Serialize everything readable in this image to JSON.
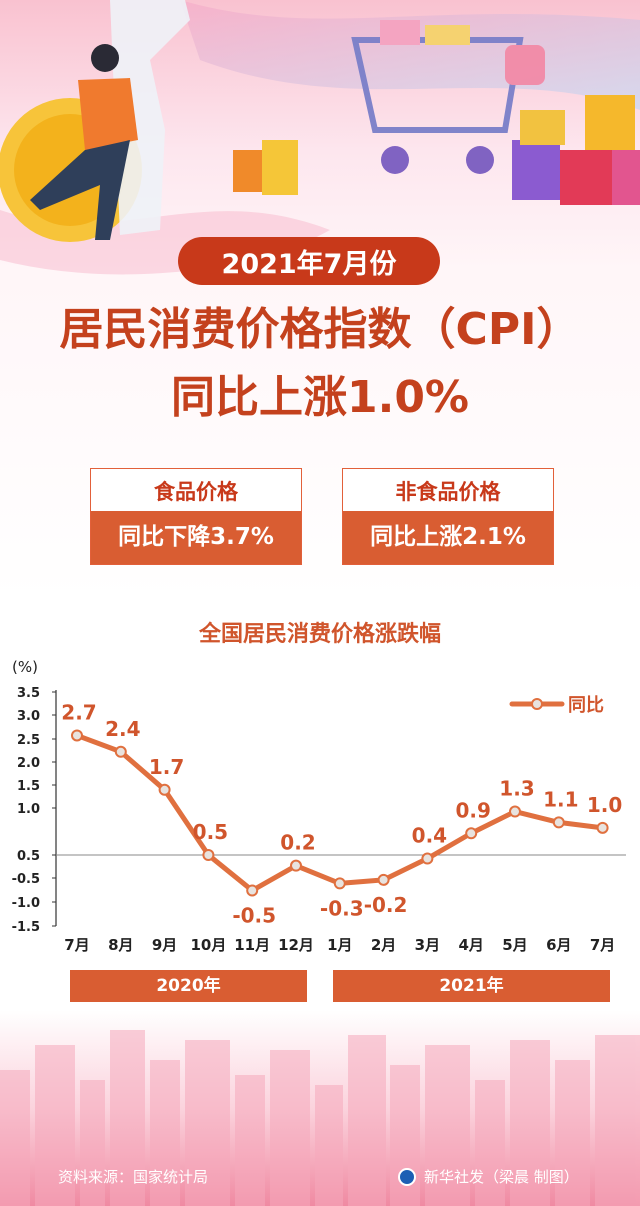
{
  "header": {
    "date_label": "2021年7月份",
    "title_line1": "居民消费价格指数（CPI）",
    "title_line2": "同比上涨1.0%"
  },
  "stats": [
    {
      "label": "食品价格",
      "value": "同比下降3.7%"
    },
    {
      "label": "非食品价格",
      "value": "同比上涨2.1%"
    }
  ],
  "colors": {
    "accent": "#d95d32",
    "title": "#c4411d",
    "line": "#e0703f",
    "point": "#e8e3df"
  },
  "chart_data": {
    "type": "line",
    "title": "全国居民消费价格涨跌幅",
    "ylabel": "(%)",
    "ylim": [
      -1.5,
      3.5
    ],
    "yticks": [
      "3.5",
      "3.0",
      "2.5",
      "2.0",
      "1.5",
      "1.0",
      "0.5",
      "-0.5",
      "-1.0",
      "-1.5"
    ],
    "categories": [
      "7月",
      "8月",
      "9月",
      "10月",
      "11月",
      "12月",
      "1月",
      "2月",
      "3月",
      "4月",
      "5月",
      "6月",
      "7月"
    ],
    "value_labels": [
      "2.7",
      "2.4",
      "1.7",
      "0.5",
      "-0.5",
      "0.2",
      "-0.3",
      "-0.2",
      "0.4",
      "0.9",
      "1.3",
      "1.1",
      "1.0"
    ],
    "series": [
      {
        "name": "同比",
        "values": [
          2.7,
          2.4,
          1.7,
          0.5,
          -0.5,
          0.2,
          -0.3,
          -0.2,
          0.4,
          0.9,
          1.3,
          1.1,
          1.0
        ]
      }
    ],
    "legend_position": "top-right",
    "groups": [
      {
        "label": "2020年",
        "span": [
          0,
          5
        ]
      },
      {
        "label": "2021年",
        "span": [
          6,
          12
        ]
      }
    ],
    "grid": false
  },
  "footer": {
    "source": "资料来源：国家统计局",
    "credit": "新华社发（梁晨  制图）"
  }
}
